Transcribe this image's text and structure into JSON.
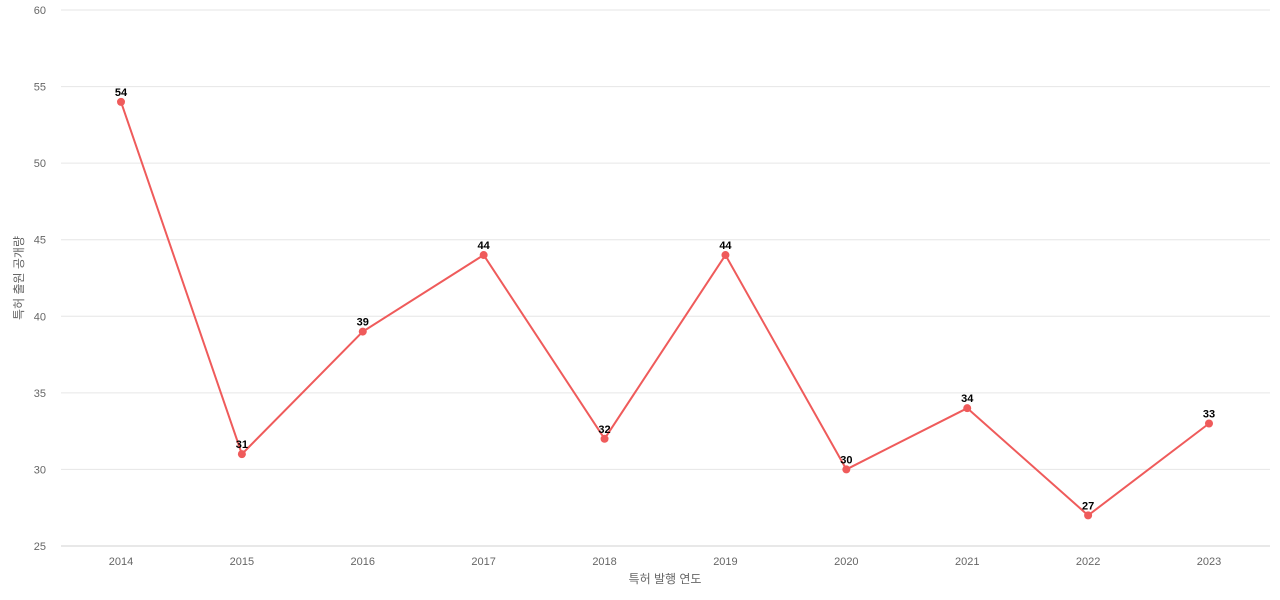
{
  "chart_data": {
    "type": "line",
    "title": "",
    "xlabel": "특허 발행 연도",
    "ylabel": "특허 출원 공개량",
    "categories": [
      "2014",
      "2015",
      "2016",
      "2017",
      "2018",
      "2019",
      "2020",
      "2021",
      "2022",
      "2023"
    ],
    "series": [
      {
        "values": [
          54,
          31,
          39,
          44,
          32,
          44,
          30,
          34,
          27,
          33
        ],
        "color": "#ef5b5b"
      }
    ],
    "ylim": [
      25,
      60
    ],
    "yticks": [
      25,
      30,
      35,
      40,
      45,
      50,
      55,
      60
    ],
    "grid": true,
    "legend": "none",
    "data_labels": true
  }
}
